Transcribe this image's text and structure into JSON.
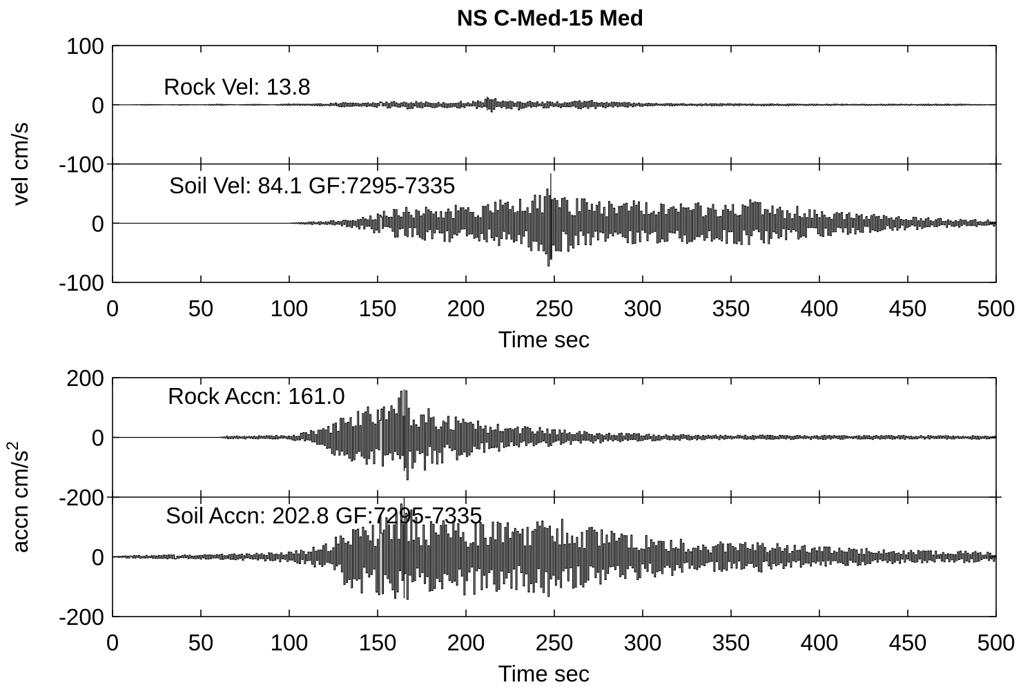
{
  "figure": {
    "title": "NS C-Med-15 Med"
  },
  "chart_data": [
    {
      "type": "line",
      "title": "NS C-Med-15 Med",
      "ylabel": "vel cm/s",
      "xlabel": "Time  sec",
      "xlim": [
        0,
        500
      ],
      "xticks": [
        0,
        50,
        100,
        150,
        200,
        250,
        300,
        350,
        400,
        450,
        500
      ],
      "xtick_labels": [
        "0",
        "50",
        "100",
        "150",
        "200",
        "250",
        "300",
        "350",
        "400",
        "450",
        "500"
      ],
      "yticks": [
        100,
        0,
        -100,
        0,
        -100
      ],
      "ytick_labels": [
        "100",
        "0",
        "-100",
        "0",
        "-100"
      ],
      "grid": false,
      "series": [
        {
          "name": "Rock Vel: 13.8",
          "ylim": [
            -100,
            100
          ],
          "peak": 13.8,
          "x": [
            0,
            10,
            20,
            30,
            40,
            50,
            60,
            70,
            80,
            90,
            100,
            110,
            120,
            130,
            140,
            150,
            160,
            165,
            170,
            180,
            190,
            200,
            210,
            212,
            220,
            228,
            230,
            240,
            250,
            260,
            270,
            280,
            290,
            300,
            320,
            340,
            360,
            380,
            400,
            420,
            440,
            460,
            480,
            500
          ],
          "y": [
            0,
            0,
            0.5,
            0,
            0.5,
            0,
            1,
            0,
            1,
            0,
            1.5,
            1,
            2,
            4,
            3,
            5,
            6,
            8,
            6,
            5,
            5,
            6,
            7,
            13.8,
            8,
            -9,
            9,
            6,
            5,
            6,
            -8,
            5,
            4,
            3,
            2,
            2,
            1.5,
            1.5,
            1,
            1,
            1,
            1,
            1,
            0
          ]
        },
        {
          "name": "Soil Vel: 84.1 GF:7295-7335",
          "ylim": [
            -100,
            100
          ],
          "peak": 84.1,
          "x": [
            0,
            50,
            100,
            110,
            120,
            130,
            140,
            150,
            160,
            170,
            180,
            190,
            200,
            210,
            220,
            230,
            240,
            243,
            248,
            252,
            260,
            270,
            280,
            290,
            300,
            310,
            320,
            330,
            340,
            350,
            360,
            370,
            380,
            390,
            400,
            410,
            420,
            430,
            440,
            450,
            460,
            470,
            480,
            490,
            500
          ],
          "y": [
            0,
            0,
            0,
            2,
            3,
            6,
            12,
            18,
            25,
            30,
            30,
            32,
            30,
            35,
            40,
            45,
            55,
            -60,
            84.1,
            -55,
            50,
            45,
            40,
            40,
            38,
            36,
            35,
            35,
            42,
            38,
            40,
            38,
            30,
            28,
            25,
            22,
            20,
            18,
            14,
            12,
            10,
            8,
            7,
            6,
            5
          ]
        }
      ]
    },
    {
      "type": "line",
      "ylabel": "accn cm/s",
      "ylabel_superscript": "2",
      "xlabel": "Time  sec",
      "xlim": [
        0,
        500
      ],
      "xticks": [
        0,
        50,
        100,
        150,
        200,
        250,
        300,
        350,
        400,
        450,
        500
      ],
      "xtick_labels": [
        "0",
        "50",
        "100",
        "150",
        "200",
        "250",
        "300",
        "350",
        "400",
        "450",
        "500"
      ],
      "yticks": [
        200,
        0,
        -200,
        0,
        -200
      ],
      "ytick_labels": [
        "200",
        "0",
        "-200",
        "0",
        "-200"
      ],
      "grid": false,
      "series": [
        {
          "name": "Rock Accn: 161.0",
          "ylim": [
            -200,
            200
          ],
          "peak": 161.0,
          "x": [
            0,
            50,
            60,
            65,
            80,
            100,
            110,
            120,
            130,
            140,
            150,
            160,
            165,
            170,
            180,
            190,
            200,
            210,
            220,
            230,
            240,
            250,
            260,
            270,
            280,
            300,
            320,
            340,
            360,
            380,
            400,
            420,
            440,
            460,
            480,
            500
          ],
          "y": [
            0,
            0,
            0,
            5,
            5,
            8,
            20,
            40,
            80,
            90,
            120,
            150,
            161.0,
            140,
            100,
            80,
            70,
            55,
            45,
            40,
            35,
            30,
            25,
            20,
            18,
            12,
            10,
            8,
            8,
            8,
            7,
            7,
            7,
            6,
            6,
            6
          ]
        },
        {
          "name": "Soil Accn: 202.8 GF:7295-7335",
          "ylim": [
            -200,
            200
          ],
          "peak": 202.8,
          "x": [
            0,
            10,
            20,
            40,
            60,
            80,
            100,
            110,
            120,
            130,
            140,
            150,
            160,
            165,
            170,
            180,
            190,
            200,
            210,
            220,
            230,
            240,
            250,
            260,
            270,
            280,
            290,
            300,
            310,
            320,
            340,
            360,
            380,
            400,
            420,
            440,
            460,
            480,
            500
          ],
          "y": [
            0,
            5,
            5,
            8,
            10,
            12,
            20,
            30,
            45,
            100,
            120,
            140,
            160,
            202.8,
            150,
            140,
            130,
            130,
            120,
            120,
            110,
            130,
            140,
            110,
            100,
            90,
            80,
            75,
            70,
            60,
            50,
            55,
            45,
            35,
            30,
            25,
            20,
            20,
            15
          ]
        }
      ]
    }
  ]
}
